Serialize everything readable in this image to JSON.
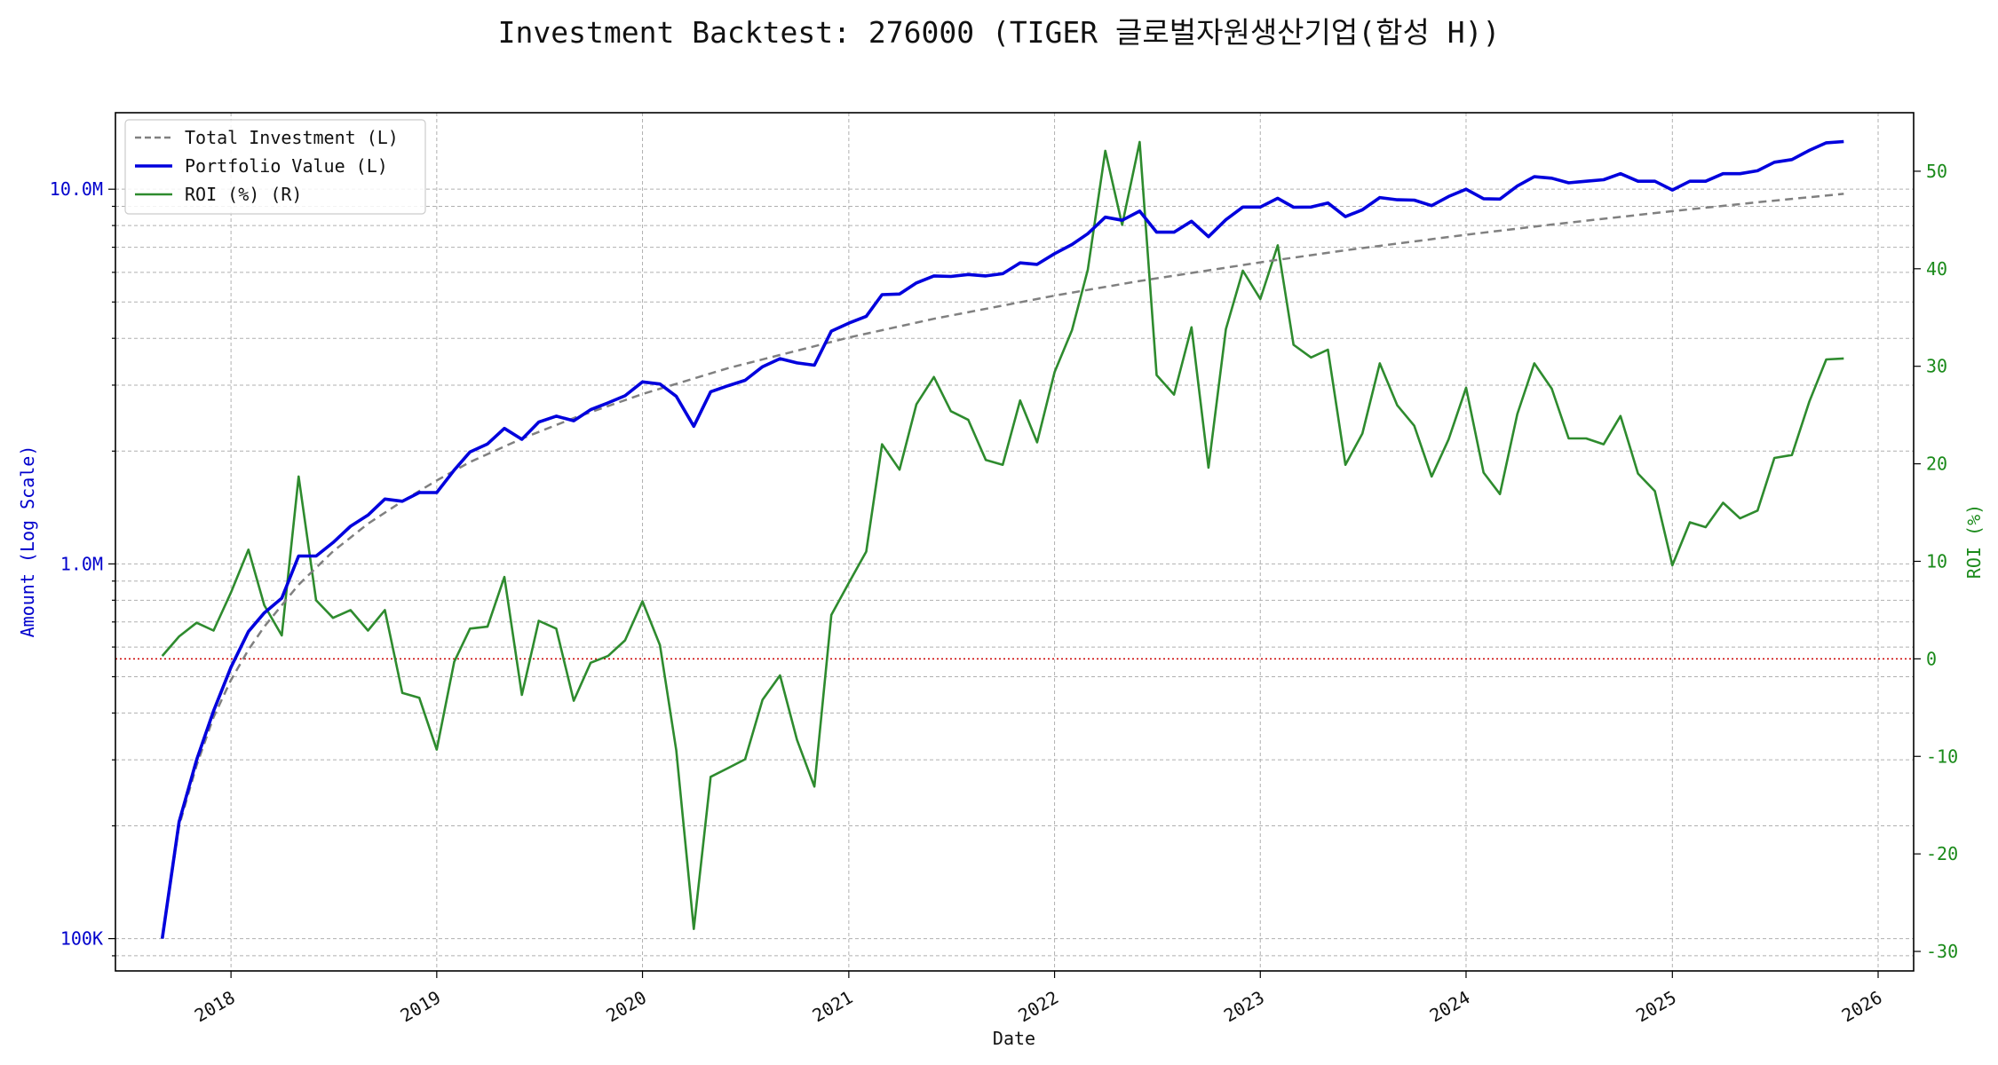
{
  "chart_data": {
    "type": "line",
    "title": "Investment Backtest: 276000 (TIGER 글로벌자원생산기업(합성 H))",
    "xlabel": "Date",
    "ylabel_left": "Amount (Log Scale)",
    "ylabel_right": "ROI (%)",
    "left_axis": {
      "scale": "log",
      "ylim": [
        82000,
        16000000
      ],
      "ticks": [
        100000,
        1000000,
        10000000
      ],
      "tick_labels": [
        "100K",
        "1.0M",
        "10.0M"
      ],
      "color": "#0000cc"
    },
    "right_axis": {
      "scale": "linear",
      "ylim": [
        -32,
        56
      ],
      "ticks": [
        -30,
        -20,
        -10,
        0,
        10,
        20,
        30,
        40,
        50
      ],
      "tick_labels": [
        "-30",
        "-20",
        "-10",
        "0",
        "10",
        "20",
        "30",
        "40",
        "50"
      ],
      "color": "#1a8a1a"
    },
    "xlim": [
      "2017-06-10",
      "2026-03-05"
    ],
    "x_ticks": [
      "2018-01-01",
      "2019-01-01",
      "2020-01-01",
      "2021-01-01",
      "2022-01-01",
      "2023-01-01",
      "2024-01-01",
      "2025-01-01",
      "2026-01-01"
    ],
    "x_tick_labels": [
      "2018",
      "2019",
      "2020",
      "2021",
      "2022",
      "2023",
      "2024",
      "2025",
      "2026"
    ],
    "grid": true,
    "legend_position": "top-left",
    "zero_line": {
      "axis": "right",
      "value": 0,
      "color": "#cc0000",
      "style": "dotted"
    },
    "series": [
      {
        "name": "Total Investment (L)",
        "axis": "left",
        "color": "#808080",
        "style": "dashed",
        "x": [
          "2017-09-01",
          "2017-10-01",
          "2017-11-01",
          "2017-12-01",
          "2018-01-01",
          "2018-02-01",
          "2018-03-01",
          "2018-05-01",
          "2018-07-01",
          "2018-09-01",
          "2018-11-01",
          "2019-01-01",
          "2019-03-01",
          "2019-06-01",
          "2019-09-01",
          "2020-01-01",
          "2020-06-01",
          "2021-01-01",
          "2021-06-01",
          "2022-01-01",
          "2022-06-01",
          "2023-01-01",
          "2023-06-01",
          "2024-01-01",
          "2024-06-01",
          "2025-01-01",
          "2025-06-01",
          "2025-11-01"
        ],
        "values": [
          100000,
          200000,
          290000,
          390000,
          490000,
          590000,
          680000,
          880000,
          1080000,
          1280000,
          1470000,
          1670000,
          1870000,
          2160000,
          2450000,
          2840000,
          3330000,
          4020000,
          4510000,
          5200000,
          5690000,
          6380000,
          6870000,
          7560000,
          8050000,
          8740000,
          9230000,
          9720000
        ]
      },
      {
        "name": "Portfolio Value (L)",
        "axis": "left",
        "color": "#0000dd",
        "style": "solid",
        "x": [
          "2017-09-01",
          "2017-10-01",
          "2017-11-01",
          "2017-12-01",
          "2018-01-01",
          "2018-02-01",
          "2018-03-01",
          "2018-04-01",
          "2018-05-01",
          "2018-06-01",
          "2018-07-01",
          "2018-08-01",
          "2018-09-01",
          "2018-10-01",
          "2018-11-01",
          "2018-12-01",
          "2019-01-01",
          "2019-02-01",
          "2019-03-01",
          "2019-04-01",
          "2019-05-01",
          "2019-06-01",
          "2019-07-01",
          "2019-08-01",
          "2019-09-01",
          "2019-10-01",
          "2019-11-01",
          "2019-12-01",
          "2020-01-01",
          "2020-02-01",
          "2020-03-01",
          "2020-04-01",
          "2020-05-01",
          "2020-06-01",
          "2020-07-01",
          "2020-08-01",
          "2020-09-01",
          "2020-10-01",
          "2020-11-01",
          "2020-12-01",
          "2021-01-01",
          "2021-02-01",
          "2021-03-01",
          "2021-04-01",
          "2021-05-01",
          "2021-06-01",
          "2021-07-01",
          "2021-08-01",
          "2021-09-01",
          "2021-10-01",
          "2021-11-01",
          "2021-12-01",
          "2022-01-01",
          "2022-02-01",
          "2022-03-01",
          "2022-04-01",
          "2022-05-01",
          "2022-06-01",
          "2022-07-01",
          "2022-08-01",
          "2022-09-01",
          "2022-10-01",
          "2022-11-01",
          "2022-12-01",
          "2023-01-01",
          "2023-02-01",
          "2023-03-01",
          "2023-04-01",
          "2023-05-01",
          "2023-06-01",
          "2023-07-01",
          "2023-08-01",
          "2023-09-01",
          "2023-10-01",
          "2023-11-01",
          "2023-12-01",
          "2024-01-01",
          "2024-02-01",
          "2024-03-01",
          "2024-04-01",
          "2024-05-01",
          "2024-06-01",
          "2024-07-01",
          "2024-08-01",
          "2024-09-01",
          "2024-10-01",
          "2024-11-01",
          "2024-12-01",
          "2025-01-01",
          "2025-02-01",
          "2025-03-01",
          "2025-04-01",
          "2025-05-01",
          "2025-06-01",
          "2025-07-01",
          "2025-08-01",
          "2025-09-01",
          "2025-10-01",
          "2025-11-01"
        ],
        "values": [
          100000,
          205000,
          300000,
          405000,
          530000,
          660000,
          740000,
          810000,
          1050000,
          1050000,
          1140000,
          1260000,
          1350000,
          1490000,
          1470000,
          1550000,
          1550000,
          1780000,
          1990000,
          2090000,
          2300000,
          2150000,
          2390000,
          2480000,
          2410000,
          2580000,
          2690000,
          2810000,
          3060000,
          3020000,
          2800000,
          2330000,
          2880000,
          2990000,
          3090000,
          3360000,
          3530000,
          3440000,
          3390000,
          4180000,
          4390000,
          4580000,
          5230000,
          5250000,
          5620000,
          5870000,
          5850000,
          5920000,
          5870000,
          5950000,
          6360000,
          6300000,
          6730000,
          7120000,
          7610000,
          8420000,
          8260000,
          8740000,
          7680000,
          7680000,
          8210000,
          7470000,
          8290000,
          8960000,
          8960000,
          9460000,
          8950000,
          8960000,
          9190000,
          8450000,
          8810000,
          9500000,
          9370000,
          9350000,
          9040000,
          9560000,
          10000000,
          9430000,
          9410000,
          10200000,
          10800000,
          10700000,
          10400000,
          10500000,
          10600000,
          11000000,
          10500000,
          10500000,
          9950000,
          10500000,
          10500000,
          11000000,
          11000000,
          11200000,
          11800000,
          12000000,
          12700000,
          13300000,
          13400000
        ]
      },
      {
        "name": "ROI (%) (R)",
        "axis": "right",
        "color": "#2e8b2e",
        "style": "solid",
        "x": [
          "2017-09-01",
          "2017-10-01",
          "2017-11-01",
          "2017-12-01",
          "2018-01-01",
          "2018-02-01",
          "2018-03-01",
          "2018-04-01",
          "2018-05-01",
          "2018-06-01",
          "2018-07-01",
          "2018-08-01",
          "2018-09-01",
          "2018-10-01",
          "2018-11-01",
          "2018-12-01",
          "2019-01-01",
          "2019-02-01",
          "2019-03-01",
          "2019-04-01",
          "2019-05-01",
          "2019-06-01",
          "2019-07-01",
          "2019-08-01",
          "2019-09-01",
          "2019-10-01",
          "2019-11-01",
          "2019-12-01",
          "2020-01-01",
          "2020-02-01",
          "2020-03-01",
          "2020-04-01",
          "2020-05-01",
          "2020-06-01",
          "2020-07-01",
          "2020-08-01",
          "2020-09-01",
          "2020-10-01",
          "2020-11-01",
          "2020-12-01",
          "2021-01-01",
          "2021-02-01",
          "2021-03-01",
          "2021-04-01",
          "2021-05-01",
          "2021-06-01",
          "2021-07-01",
          "2021-08-01",
          "2021-09-01",
          "2021-10-01",
          "2021-11-01",
          "2021-12-01",
          "2022-01-01",
          "2022-02-01",
          "2022-03-01",
          "2022-04-01",
          "2022-05-01",
          "2022-06-01",
          "2022-07-01",
          "2022-08-01",
          "2022-09-01",
          "2022-10-01",
          "2022-11-01",
          "2022-12-01",
          "2023-01-01",
          "2023-02-01",
          "2023-03-01",
          "2023-04-01",
          "2023-05-01",
          "2023-06-01",
          "2023-07-01",
          "2023-08-01",
          "2023-09-01",
          "2023-10-01",
          "2023-11-01",
          "2023-12-01",
          "2024-01-01",
          "2024-02-01",
          "2024-03-01",
          "2024-04-01",
          "2024-05-01",
          "2024-06-01",
          "2024-07-01",
          "2024-08-01",
          "2024-09-01",
          "2024-10-01",
          "2024-11-01",
          "2024-12-01",
          "2025-01-01",
          "2025-02-01",
          "2025-03-01",
          "2025-04-01",
          "2025-05-01",
          "2025-06-01",
          "2025-07-01",
          "2025-08-01",
          "2025-09-01",
          "2025-10-01",
          "2025-11-01"
        ],
        "values": [
          0.3,
          2.3,
          3.7,
          2.9,
          6.8,
          11.2,
          5.5,
          2.4,
          18.7,
          6.0,
          4.2,
          5.0,
          2.9,
          5.0,
          -3.5,
          -4.0,
          -9.3,
          -0.3,
          3.1,
          3.3,
          8.4,
          -3.7,
          3.9,
          3.1,
          -4.3,
          -0.4,
          0.3,
          1.9,
          5.9,
          1.4,
          -9.4,
          -27.7,
          -12.1,
          -11.2,
          -10.3,
          -4.2,
          -1.7,
          -8.3,
          -13.1,
          4.5,
          7.8,
          11.0,
          22.0,
          19.4,
          26.1,
          28.9,
          25.4,
          24.5,
          20.4,
          19.9,
          26.5,
          22.2,
          29.4,
          33.7,
          39.9,
          52.1,
          44.5,
          53.0,
          29.1,
          27.1,
          34.0,
          19.6,
          33.8,
          39.8,
          36.9,
          42.4,
          32.2,
          30.9,
          31.7,
          19.9,
          23.1,
          30.3,
          26.0,
          23.9,
          18.7,
          22.5,
          27.8,
          19.1,
          16.9,
          25.1,
          30.3,
          27.7,
          22.6,
          22.6,
          22.0,
          24.9,
          19.0,
          17.2,
          9.6,
          14.0,
          13.5,
          16.0,
          14.4,
          15.2,
          20.6,
          20.9,
          26.4,
          30.7,
          30.8
        ]
      }
    ]
  }
}
